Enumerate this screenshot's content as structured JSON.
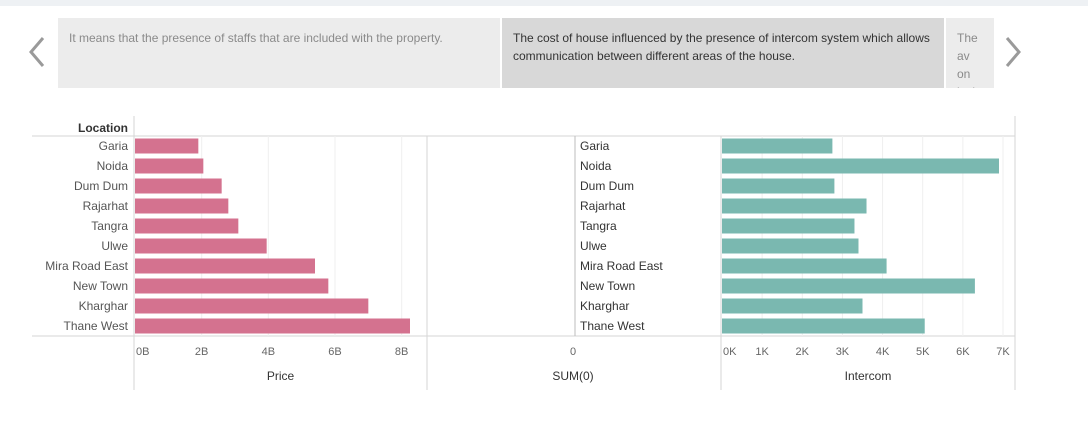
{
  "carousel": {
    "cards": [
      {
        "text": "It means that the presence of staffs that are included with the property."
      },
      {
        "text": "The cost of house influenced by the presence of intercom system which allows communication between different areas of the house."
      },
      {
        "text": "The av on its l"
      }
    ]
  },
  "chart_data": {
    "type": "bar",
    "orientation": "horizontal",
    "row_header": "Location",
    "categories": [
      "Garia",
      "Noida",
      "Dum Dum",
      "Rajarhat",
      "Tangra",
      "Ulwe",
      "Mira Road East",
      "New Town",
      "Kharghar",
      "Thane West"
    ],
    "panels": [
      {
        "name": "Price",
        "xlabel": "Price",
        "values": [
          1.9,
          2.05,
          2.6,
          2.8,
          3.1,
          3.95,
          5.4,
          5.8,
          7.0,
          8.25
        ],
        "xlim": [
          0,
          8.4
        ],
        "ticks": [
          0,
          2,
          4,
          6,
          8
        ],
        "tick_labels": [
          "0B",
          "2B",
          "4B",
          "6B",
          "8B"
        ],
        "color": "#d4728f"
      },
      {
        "name": "SUM(0)",
        "xlabel": "SUM(0)",
        "values": [
          0,
          0,
          0,
          0,
          0,
          0,
          0,
          0,
          0,
          0
        ],
        "ticks": [
          0
        ],
        "tick_labels": [
          "0"
        ]
      },
      {
        "name": "Intercom",
        "xlabel": "Intercom",
        "values": [
          2750,
          6900,
          2800,
          3600,
          3300,
          3400,
          4100,
          6300,
          3500,
          5050
        ],
        "xlim": [
          0,
          7000
        ],
        "ticks": [
          0,
          1000,
          2000,
          3000,
          4000,
          5000,
          6000,
          7000
        ],
        "tick_labels": [
          "0K",
          "1K",
          "2K",
          "3K",
          "4K",
          "5K",
          "6K",
          "7K"
        ],
        "color": "#7ab8b0"
      }
    ],
    "gridlines": true
  }
}
